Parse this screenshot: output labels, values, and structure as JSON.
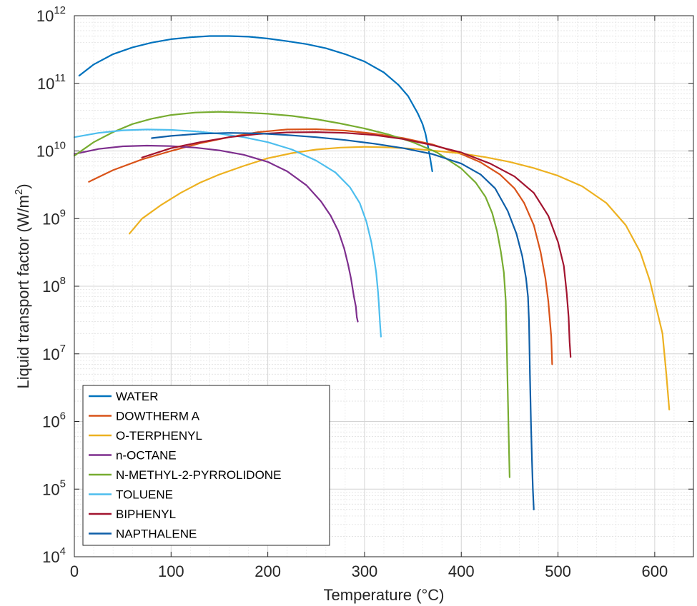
{
  "chart_data": {
    "type": "line",
    "xlabel": "Temperature (°C)",
    "ylabel": "Liquid transport factor (W/m²)",
    "ylabel_parts": {
      "main": "Liquid transport factor (W/m",
      "sup": "2",
      "close": ")"
    },
    "xlim": [
      0,
      640
    ],
    "ylim": [
      10000,
      1000000000000
    ],
    "yscale": "log",
    "x_ticks": [
      0,
      100,
      200,
      300,
      400,
      500,
      600
    ],
    "x_tick_labels": [
      "0",
      "100",
      "200",
      "300",
      "400",
      "500",
      "600"
    ],
    "y_ticks": [
      {
        "base": "10",
        "exp": "4",
        "value": 10000
      },
      {
        "base": "10",
        "exp": "5",
        "value": 100000
      },
      {
        "base": "10",
        "exp": "6",
        "value": 1000000
      },
      {
        "base": "10",
        "exp": "7",
        "value": 10000000
      },
      {
        "base": "10",
        "exp": "8",
        "value": 100000000
      },
      {
        "base": "10",
        "exp": "9",
        "value": 1000000000
      },
      {
        "base": "10",
        "exp": "10",
        "value": 10000000000
      },
      {
        "base": "10",
        "exp": "11",
        "value": 100000000000
      },
      {
        "base": "10",
        "exp": "12",
        "value": 1000000000000
      }
    ],
    "grid": true,
    "minor_grid": true,
    "legend_position": "bottom-left",
    "series": [
      {
        "name": "WATER",
        "color": "#0072BD",
        "x": [
          5,
          20,
          40,
          60,
          80,
          100,
          120,
          140,
          160,
          180,
          200,
          220,
          240,
          260,
          280,
          300,
          320,
          335,
          345,
          355,
          360,
          363,
          366,
          368,
          370
        ],
        "y": [
          130000000000.0,
          190000000000.0,
          270000000000.0,
          340000000000.0,
          400000000000.0,
          450000000000.0,
          480000000000.0,
          500000000000.0,
          500000000000.0,
          490000000000.0,
          460000000000.0,
          420000000000.0,
          380000000000.0,
          330000000000.0,
          270000000000.0,
          210000000000.0,
          145000000000.0,
          95000000000.0,
          65000000000.0,
          36000000000.0,
          25000000000.0,
          18000000000.0,
          11000000000.0,
          7500000000.0,
          5000000000.0
        ]
      },
      {
        "name": "DOWTHERM A",
        "color": "#D95319",
        "x": [
          15,
          40,
          70,
          100,
          130,
          160,
          190,
          220,
          250,
          280,
          310,
          340,
          370,
          400,
          420,
          440,
          455,
          465,
          475,
          482,
          487,
          490,
          493,
          494
        ],
        "y": [
          3500000000.0,
          5200000000.0,
          7500000000.0,
          10000000000.0,
          13000000000.0,
          16000000000.0,
          19000000000.0,
          20800000000.0,
          21000000000.0,
          20000000000.0,
          18000000000.0,
          15500000000.0,
          12500000000.0,
          9000000000.0,
          6800000000.0,
          4500000000.0,
          2800000000.0,
          1700000000.0,
          800000000.0,
          320000000.0,
          130000000.0,
          60000000.0,
          18000000.0,
          7000000.0
        ]
      },
      {
        "name": "O-TERPHENYL",
        "color": "#EDB120",
        "x": [
          57,
          70,
          90,
          110,
          130,
          150,
          175,
          200,
          225,
          250,
          275,
          300,
          325,
          350,
          375,
          400,
          425,
          450,
          475,
          500,
          525,
          550,
          570,
          585,
          595,
          603,
          608,
          612,
          615
        ],
        "y": [
          600000000.0,
          1000000000.0,
          1600000000.0,
          2400000000.0,
          3400000000.0,
          4500000000.0,
          6000000000.0,
          7800000000.0,
          9300000000.0,
          10500000000.0,
          11200000000.0,
          11500000000.0,
          11300000000.0,
          10800000000.0,
          10000000000.0,
          9200000000.0,
          8100000000.0,
          6900000000.0,
          5600000000.0,
          4300000000.0,
          3000000000.0,
          1700000000.0,
          800000000.0,
          320000000.0,
          120000000.0,
          40000000.0,
          20000000.0,
          5000000.0,
          1500000.0
        ]
      },
      {
        "name": "n-OCTANE",
        "color": "#7E2F8E",
        "x": [
          0,
          25,
          50,
          75,
          100,
          125,
          150,
          175,
          200,
          220,
          240,
          255,
          265,
          273,
          279,
          283,
          286,
          289,
          291,
          292,
          293
        ],
        "y": [
          9000000000.0,
          10700000000.0,
          11700000000.0,
          12000000000.0,
          11800000000.0,
          11200000000.0,
          10200000000.0,
          8800000000.0,
          6900000000.0,
          5000000000.0,
          3100000000.0,
          1800000000.0,
          1100000000.0,
          650000000.0,
          360000000.0,
          210000000.0,
          130000000.0,
          70000000.0,
          50000000.0,
          35000000.0,
          30000000.0
        ]
      },
      {
        "name": "N-METHYL-2-PYRROLIDONE",
        "color": "#77AC30",
        "x": [
          0,
          20,
          40,
          60,
          80,
          100,
          125,
          150,
          175,
          200,
          225,
          250,
          275,
          300,
          325,
          350,
          375,
          400,
          415,
          425,
          432,
          437,
          441,
          444,
          446,
          447,
          448,
          449,
          450
        ],
        "y": [
          8500000000.0,
          13500000000.0,
          19000000000.0,
          25000000000.0,
          30000000000.0,
          34000000000.0,
          37000000000.0,
          38000000000.0,
          37000000000.0,
          35500000000.0,
          33000000000.0,
          29500000000.0,
          25500000000.0,
          21500000000.0,
          17500000000.0,
          13500000000.0,
          9500000000.0,
          5500000000.0,
          3400000000.0,
          2100000000.0,
          1200000000.0,
          650000000.0,
          320000000.0,
          160000000.0,
          60000000.0,
          15000000.0,
          3000000.0,
          600000.0,
          150000.0
        ]
      },
      {
        "name": "TOLUENE",
        "color": "#4DBEEE",
        "x": [
          0,
          25,
          50,
          75,
          100,
          125,
          150,
          175,
          200,
          225,
          250,
          270,
          285,
          295,
          302,
          307,
          310,
          312,
          314,
          315,
          316,
          317
        ],
        "y": [
          16000000000.0,
          18500000000.0,
          20200000000.0,
          20800000000.0,
          20500000000.0,
          19500000000.0,
          18000000000.0,
          16000000000.0,
          13500000000.0,
          10500000000.0,
          7200000000.0,
          4800000000.0,
          2900000000.0,
          1700000000.0,
          900000000.0,
          450000000.0,
          250000000.0,
          160000000.0,
          80000000.0,
          50000000.0,
          28000000.0,
          18000000.0
        ]
      },
      {
        "name": "BIPHENYL",
        "color": "#A2142F",
        "x": [
          70,
          100,
          130,
          160,
          190,
          220,
          250,
          280,
          310,
          340,
          370,
          400,
          430,
          455,
          475,
          490,
          500,
          506,
          509,
          511,
          512,
          513
        ],
        "y": [
          8000000000.0,
          11000000000.0,
          13500000000.0,
          16000000000.0,
          17800000000.0,
          18800000000.0,
          19000000000.0,
          18500000000.0,
          17200000000.0,
          15000000000.0,
          12200000000.0,
          9500000000.0,
          6500000000.0,
          4200000000.0,
          2400000000.0,
          1100000000.0,
          450000000.0,
          200000000.0,
          80000000.0,
          35000000.0,
          15000000.0,
          9000000.0
        ]
      },
      {
        "name": "NAPTHALENE",
        "color": "#0E5FA8",
        "x": [
          80,
          100,
          130,
          160,
          190,
          220,
          250,
          280,
          310,
          340,
          370,
          400,
          420,
          435,
          448,
          457,
          463,
          467,
          469,
          470,
          471,
          472,
          473,
          474,
          475
        ],
        "y": [
          15500000000.0,
          16700000000.0,
          18000000000.0,
          18500000000.0,
          18200000000.0,
          17200000000.0,
          16000000000.0,
          14500000000.0,
          12800000000.0,
          11000000000.0,
          9000000000.0,
          6500000000.0,
          4500000000.0,
          2800000000.0,
          1300000000.0,
          600000000.0,
          280000000.0,
          130000000.0,
          70000000.0,
          30000000.0,
          5000000.0,
          1000000.0,
          300000.0,
          100000.0,
          50000.0
        ]
      }
    ]
  }
}
